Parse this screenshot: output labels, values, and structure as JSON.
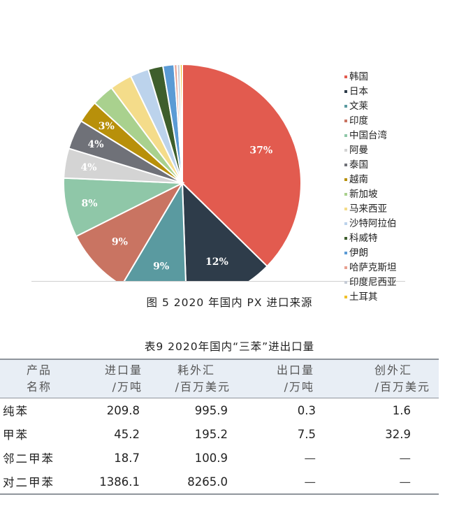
{
  "chart_data": {
    "type": "pie",
    "title": "",
    "slices": [
      {
        "name": "韩国",
        "value": 37,
        "label": "37%",
        "color": "#e25b4f"
      },
      {
        "name": "日本",
        "value": 12,
        "label": "12%",
        "color": "#2e3c4a"
      },
      {
        "name": "文莱",
        "value": 9,
        "label": "9%",
        "color": "#5a9aa0"
      },
      {
        "name": "印度",
        "value": 9,
        "label": "9%",
        "color": "#c97462"
      },
      {
        "name": "中国台湾",
        "value": 8,
        "label": "8%",
        "color": "#8fc7a8"
      },
      {
        "name": "阿曼",
        "value": 4,
        "label": "4%",
        "color": "#d4d4d4"
      },
      {
        "name": "泰国",
        "value": 4,
        "label": "4%",
        "color": "#6f7178"
      },
      {
        "name": "越南",
        "value": 3,
        "label": "3%",
        "color": "#b8900a"
      },
      {
        "name": "新加坡",
        "value": 3,
        "label": "",
        "color": "#a9d18e"
      },
      {
        "name": "马来西亚",
        "value": 3,
        "label": "",
        "color": "#f4dc8a"
      },
      {
        "name": "沙特阿拉伯",
        "value": 2.5,
        "label": "",
        "color": "#bcd3ec"
      },
      {
        "name": "科威特",
        "value": 2,
        "label": "",
        "color": "#3e5e2c"
      },
      {
        "name": "伊朗",
        "value": 1.5,
        "label": "",
        "color": "#5b9bd5"
      },
      {
        "name": "哈萨克斯坦",
        "value": 0.4,
        "label": "",
        "color": "#e8a090"
      },
      {
        "name": "印度尼西亚",
        "value": 0.4,
        "label": "",
        "color": "#c6ccd6"
      },
      {
        "name": "土耳其",
        "value": 0.3,
        "label": "",
        "color": "#f0c02a"
      }
    ],
    "legend_position": "right"
  },
  "figure_caption": "图 5  2020 年国内 PX 进口来源",
  "table": {
    "caption": "表9  2020年国内“三苯”进出口量",
    "headers": [
      {
        "line1": "产品",
        "line2": "名称"
      },
      {
        "line1": "进口量",
        "line2": "/万吨"
      },
      {
        "line1": "耗外汇",
        "line2": "/百万美元"
      },
      {
        "line1": "出口量",
        "line2": "/万吨"
      },
      {
        "line1": "创外汇",
        "line2": "/百万美元"
      }
    ],
    "rows": [
      {
        "name": "纯苯",
        "import": "209.8",
        "forex_spent": "995.9",
        "export": "0.3",
        "forex_earned": "1.6"
      },
      {
        "name": "甲苯",
        "import": "45.2",
        "forex_spent": "195.2",
        "export": "7.5",
        "forex_earned": "32.9"
      },
      {
        "name": "邻二甲苯",
        "import": "18.7",
        "forex_spent": "100.9",
        "export": "—",
        "forex_earned": "—"
      },
      {
        "name": "对二甲苯",
        "import": "1386.1",
        "forex_spent": "8265.0",
        "export": "—",
        "forex_earned": "—"
      }
    ]
  }
}
